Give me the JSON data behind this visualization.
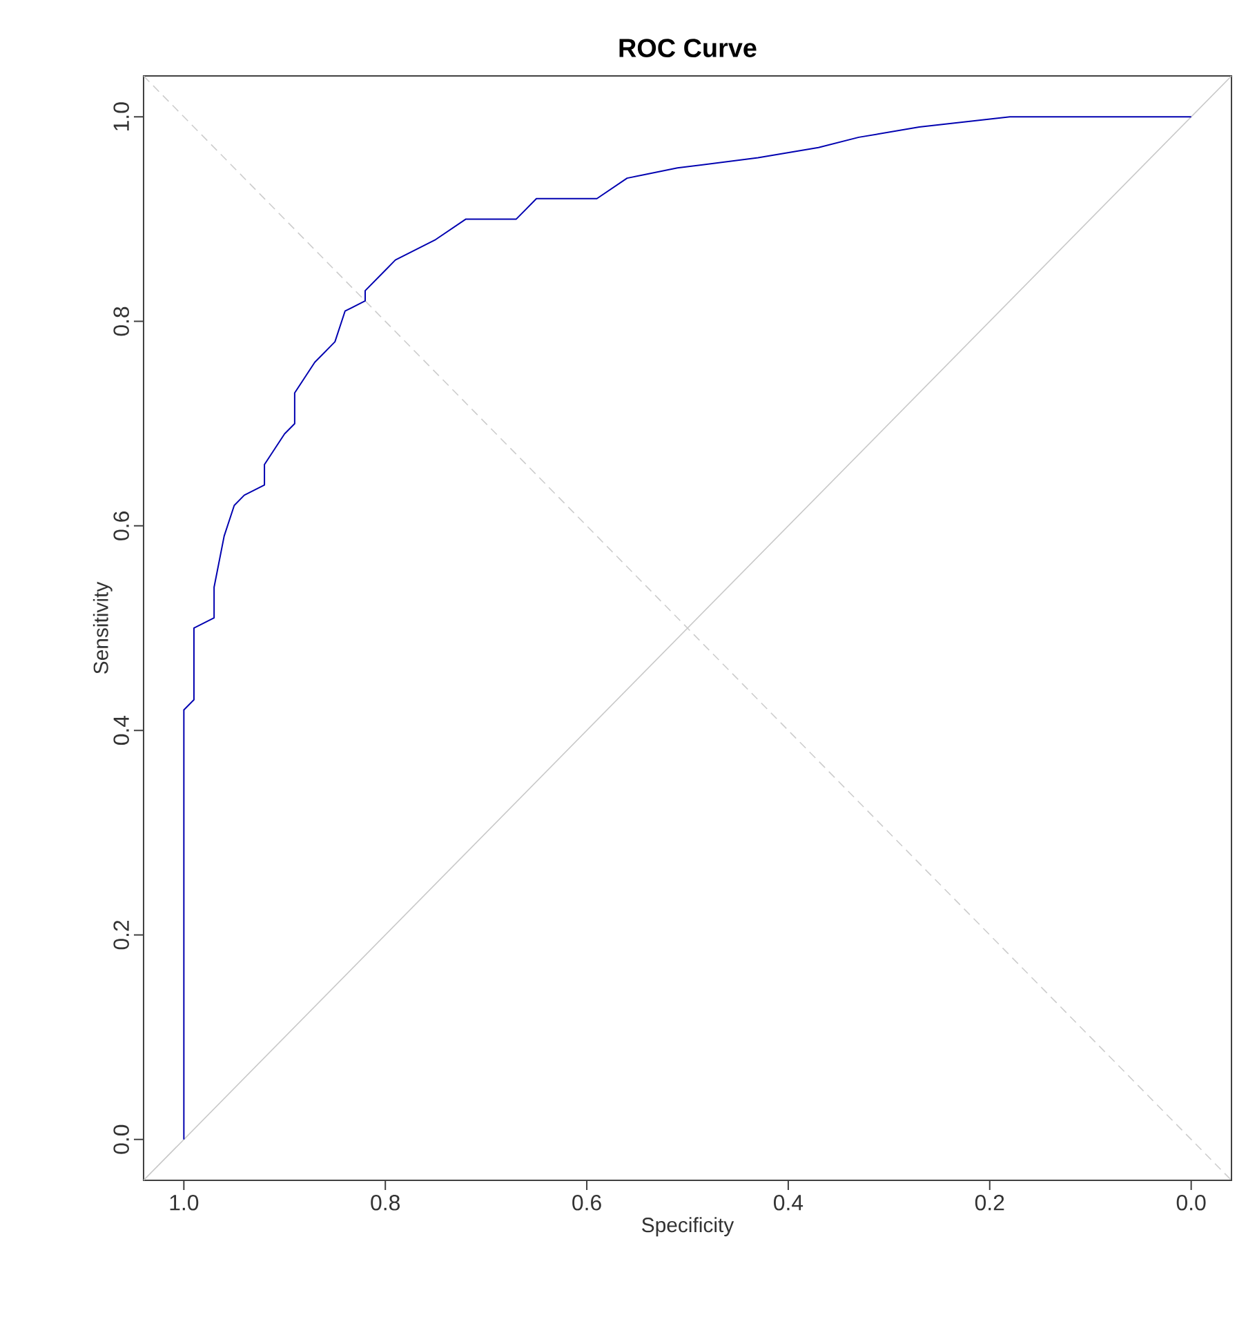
{
  "chart_data": {
    "type": "line",
    "title": "ROC Curve",
    "xlabel": "Specificity",
    "ylabel": "Sensitivity",
    "xlim": [
      1.04,
      -0.04
    ],
    "ylim": [
      -0.04,
      1.04
    ],
    "xticks": [
      {
        "value": 1.0,
        "label": "1.0"
      },
      0.8,
      0.6,
      0.4,
      0.2,
      {
        "value": 0.0,
        "label": "0.0"
      }
    ],
    "yticks": [
      {
        "value": 0.0,
        "label": "0.0"
      },
      0.2,
      0.4,
      0.6,
      0.8,
      {
        "value": 1.0,
        "label": "1.0"
      }
    ],
    "series": [
      {
        "color": "#c8c8c8",
        "line_style": "solid",
        "x": [
          1.04,
          -0.04
        ],
        "values": [
          -0.04,
          1.04
        ]
      },
      {
        "color": "#cccccc",
        "line_style": "dashed",
        "x": [
          1.04,
          -0.04
        ],
        "values": [
          1.04,
          -0.04
        ]
      },
      {
        "color": "#0000b0",
        "line_style": "solid",
        "x": [
          1.0,
          1.0,
          0.99,
          0.99,
          0.97,
          0.97,
          0.96,
          0.95,
          0.94,
          0.92,
          0.92,
          0.9,
          0.89,
          0.89,
          0.87,
          0.85,
          0.84,
          0.82,
          0.82,
          0.8,
          0.79,
          0.77,
          0.75,
          0.72,
          0.67,
          0.65,
          0.59,
          0.56,
          0.51,
          0.43,
          0.37,
          0.33,
          0.27,
          0.18,
          0.17,
          0.0
        ],
        "values": [
          0.0,
          0.42,
          0.43,
          0.5,
          0.51,
          0.54,
          0.59,
          0.62,
          0.63,
          0.64,
          0.66,
          0.69,
          0.7,
          0.73,
          0.76,
          0.78,
          0.81,
          0.82,
          0.83,
          0.85,
          0.86,
          0.87,
          0.88,
          0.9,
          0.9,
          0.92,
          0.92,
          0.94,
          0.95,
          0.96,
          0.97,
          0.98,
          0.99,
          1.0,
          1.0,
          1.0
        ]
      }
    ]
  }
}
